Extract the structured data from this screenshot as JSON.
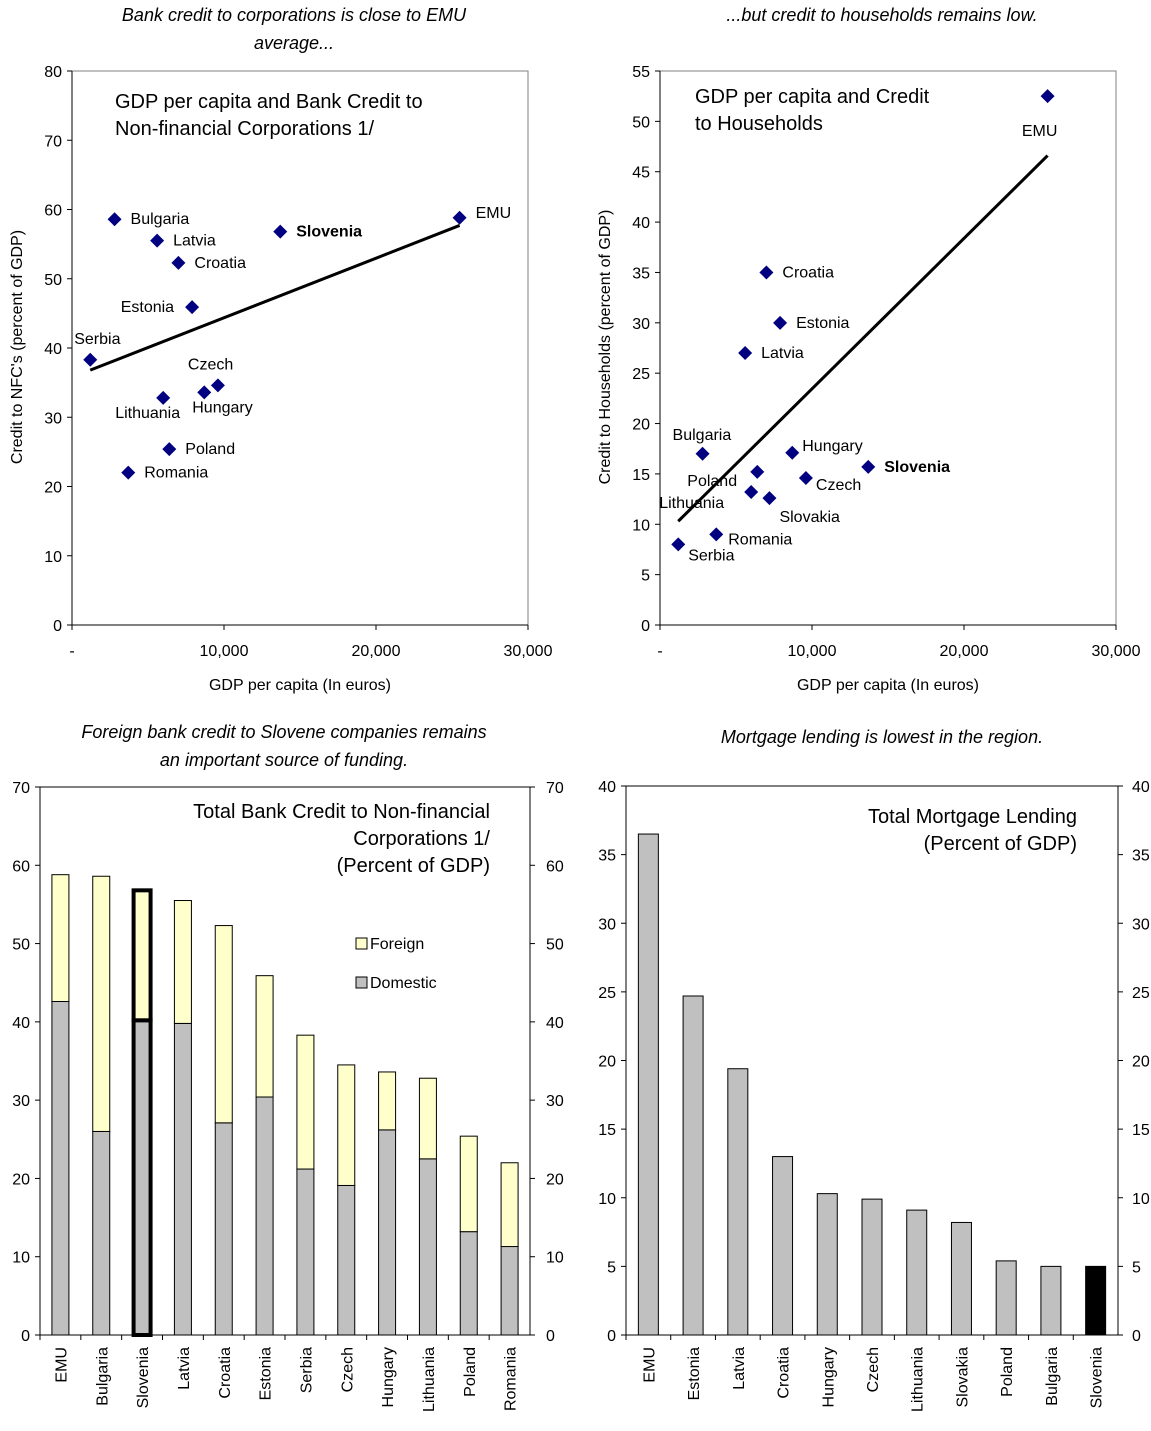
{
  "charts": [
    {
      "caption": [
        "Bank credit to corporations is close to EMU",
        "average..."
      ],
      "chart_data": {
        "type": "scatter",
        "title": [
          "GDP per capita and Bank Credit to",
          "Non-financial Corporations 1/"
        ],
        "xlabel": "GDP per capita (In euros)",
        "ylabel": "Credit to NFC's (percent of GDP)",
        "xlim": [
          0,
          30000
        ],
        "ylim": [
          0,
          80
        ],
        "x_ticks": [
          "-",
          "10,000",
          "20,000",
          "30,000"
        ],
        "y_ticks": [
          "0",
          "10",
          "20",
          "30",
          "40",
          "50",
          "60",
          "70",
          "80"
        ],
        "marker_color": "#000080",
        "points": [
          {
            "name": "Bulgaria",
            "x": 2800,
            "y": 58.6
          },
          {
            "name": "Latvia",
            "x": 5600,
            "y": 55.5
          },
          {
            "name": "Croatia",
            "x": 7000,
            "y": 52.3
          },
          {
            "name": "Slovenia",
            "x": 13700,
            "y": 56.8,
            "bold": true
          },
          {
            "name": "EMU",
            "x": 25500,
            "y": 58.8
          },
          {
            "name": "Estonia",
            "x": 7900,
            "y": 45.9
          },
          {
            "name": "Serbia",
            "x": 1200,
            "y": 38.3
          },
          {
            "name": "Czech",
            "x": 9600,
            "y": 34.6
          },
          {
            "name": "Hungary",
            "x": 8700,
            "y": 33.6
          },
          {
            "name": "Lithuania",
            "x": 6000,
            "y": 32.8
          },
          {
            "name": "Poland",
            "x": 6400,
            "y": 25.4
          },
          {
            "name": "Romania",
            "x": 3700,
            "y": 22.0
          }
        ],
        "trendline": [
          [
            1200,
            36.8
          ],
          [
            25500,
            57.7
          ]
        ]
      }
    },
    {
      "caption": [
        "...but credit to households remains  low."
      ],
      "chart_data": {
        "type": "scatter",
        "title": [
          "GDP per capita and Credit",
          "to Households"
        ],
        "xlabel": "GDP per capita (In euros)",
        "ylabel": "Credit to Households (percent of GDP)",
        "xlim": [
          0,
          30000
        ],
        "ylim": [
          0,
          55
        ],
        "x_ticks": [
          "-",
          "10,000",
          "20,000",
          "30,000"
        ],
        "y_ticks": [
          "0",
          "5",
          "10",
          "15",
          "20",
          "25",
          "30",
          "35",
          "40",
          "45",
          "50",
          "55"
        ],
        "marker_color": "#000080",
        "points": [
          {
            "name": "EMU",
            "x": 25500,
            "y": 52.5
          },
          {
            "name": "Croatia",
            "x": 7000,
            "y": 35.0
          },
          {
            "name": "Estonia",
            "x": 7900,
            "y": 30.0
          },
          {
            "name": "Latvia",
            "x": 5600,
            "y": 27.0
          },
          {
            "name": "Bulgaria",
            "x": 2800,
            "y": 17.0
          },
          {
            "name": "Hungary",
            "x": 8700,
            "y": 17.1
          },
          {
            "name": "Poland",
            "x": 6400,
            "y": 15.2
          },
          {
            "name": "Slovenia",
            "x": 13700,
            "y": 15.7,
            "bold": true
          },
          {
            "name": "Czech",
            "x": 9600,
            "y": 14.6
          },
          {
            "name": "Lithuania",
            "x": 6000,
            "y": 13.2
          },
          {
            "name": "Slovakia",
            "x": 7200,
            "y": 12.6
          },
          {
            "name": "Romania",
            "x": 3700,
            "y": 9.0
          },
          {
            "name": "Serbia",
            "x": 1200,
            "y": 8.0
          }
        ],
        "trendline": [
          [
            1200,
            10.3
          ],
          [
            25500,
            46.6
          ]
        ]
      }
    },
    {
      "caption": [
        "Foreign bank credit to Slovene companies remains",
        "an important source of funding."
      ],
      "chart_data": {
        "type": "bar",
        "stacked": true,
        "title": [
          "Total Bank Credit to Non-financial",
          "Corporations 1/",
          "(Percent of GDP)"
        ],
        "xlabel": "",
        "ylabel": "",
        "ylim": [
          0,
          70
        ],
        "y_ticks": [
          "0",
          "10",
          "20",
          "30",
          "40",
          "50",
          "60",
          "70"
        ],
        "categories": [
          "EMU",
          "Bulgaria",
          "Slovenia",
          "Latvia",
          "Croatia",
          "Estonia",
          "Serbia",
          "Czech",
          "Hungary",
          "Lithuania",
          "Poland",
          "Romania"
        ],
        "series": [
          {
            "name": "Domestic",
            "color": "#c0c0c0",
            "values": [
              42.6,
              26.0,
              40.2,
              39.8,
              27.1,
              30.4,
              21.2,
              19.1,
              26.2,
              22.5,
              13.2,
              11.3
            ]
          },
          {
            "name": "Foreign",
            "color": "#ffffcc",
            "values": [
              16.2,
              32.6,
              16.6,
              15.7,
              25.2,
              15.5,
              17.1,
              15.4,
              7.4,
              10.3,
              12.2,
              10.7
            ]
          }
        ],
        "highlight": "Slovenia",
        "legend": "right"
      }
    },
    {
      "caption": [
        "Mortgage lending is lowest in the region."
      ],
      "chart_data": {
        "type": "bar",
        "title": [
          "Total Mortgage Lending",
          "(Percent of GDP)"
        ],
        "xlabel": "",
        "ylabel": "",
        "ylim": [
          0,
          40
        ],
        "y_ticks": [
          "0",
          "5",
          "10",
          "15",
          "20",
          "25",
          "30",
          "35",
          "40"
        ],
        "categories": [
          "EMU",
          "Estonia",
          "Latvia",
          "Croatia",
          "Hungary",
          "Czech",
          "Lithuania",
          "Slovakia",
          "Poland",
          "Bulgaria",
          "Slovenia"
        ],
        "values": [
          36.5,
          24.7,
          19.4,
          13.0,
          10.3,
          9.9,
          9.1,
          8.2,
          5.4,
          5.0,
          5.0
        ],
        "bar_color": "#c0c0c0",
        "highlight": "Slovenia",
        "highlight_color": "#000000"
      }
    }
  ]
}
